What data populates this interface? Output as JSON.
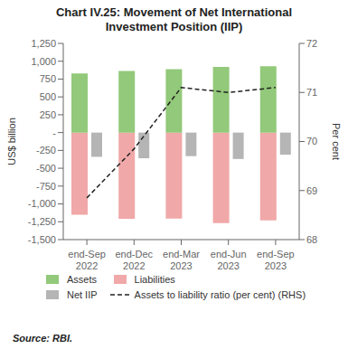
{
  "chart_data": {
    "type": "bar",
    "title": "Chart IV.25: Movement of Net International\nInvestment Position (IIP)",
    "categories": [
      "end-Sep\n2022",
      "end-Dec\n2022",
      "end-Mar\n2023",
      "end-Jun\n2023",
      "end-Sep\n2023"
    ],
    "series": [
      {
        "name": "Assets",
        "type": "bar",
        "color": "#92c97a",
        "values": [
          830,
          865,
          890,
          920,
          930
        ]
      },
      {
        "name": "Liabilities",
        "type": "bar",
        "color": "#f0a8a8",
        "values": [
          -1150,
          -1210,
          -1205,
          -1270,
          -1230
        ]
      },
      {
        "name": "Net IIP",
        "type": "bar",
        "color": "#b5b5b5",
        "values": [
          -340,
          -360,
          -330,
          -370,
          -310
        ]
      },
      {
        "name": "Assets to liability ratio (per cent) (RHS)",
        "type": "line",
        "axis": "y2",
        "line_style": "dashed",
        "color": "#222222",
        "values": [
          68.85,
          69.85,
          71.1,
          71.0,
          71.1
        ]
      }
    ],
    "ylabel": "US$ billion",
    "y2label": "Per cent",
    "ylim": [
      -1500,
      1250
    ],
    "yticks": [
      {
        "value": -1500,
        "label": "-1,500"
      },
      {
        "value": -1250,
        "label": "-1,250"
      },
      {
        "value": -1000,
        "label": "-1,000"
      },
      -750,
      -500,
      -250,
      {
        "value": 0,
        "label": "-"
      },
      250,
      500,
      750,
      {
        "value": 1000,
        "label": "1,000"
      },
      {
        "value": 1250,
        "label": "1,250"
      }
    ],
    "y2lim": [
      68,
      72
    ],
    "y2ticks": [
      68,
      69,
      70,
      71,
      72
    ],
    "grid": false,
    "legend": "bottom",
    "annotations": [
      "Source: RBI."
    ]
  }
}
